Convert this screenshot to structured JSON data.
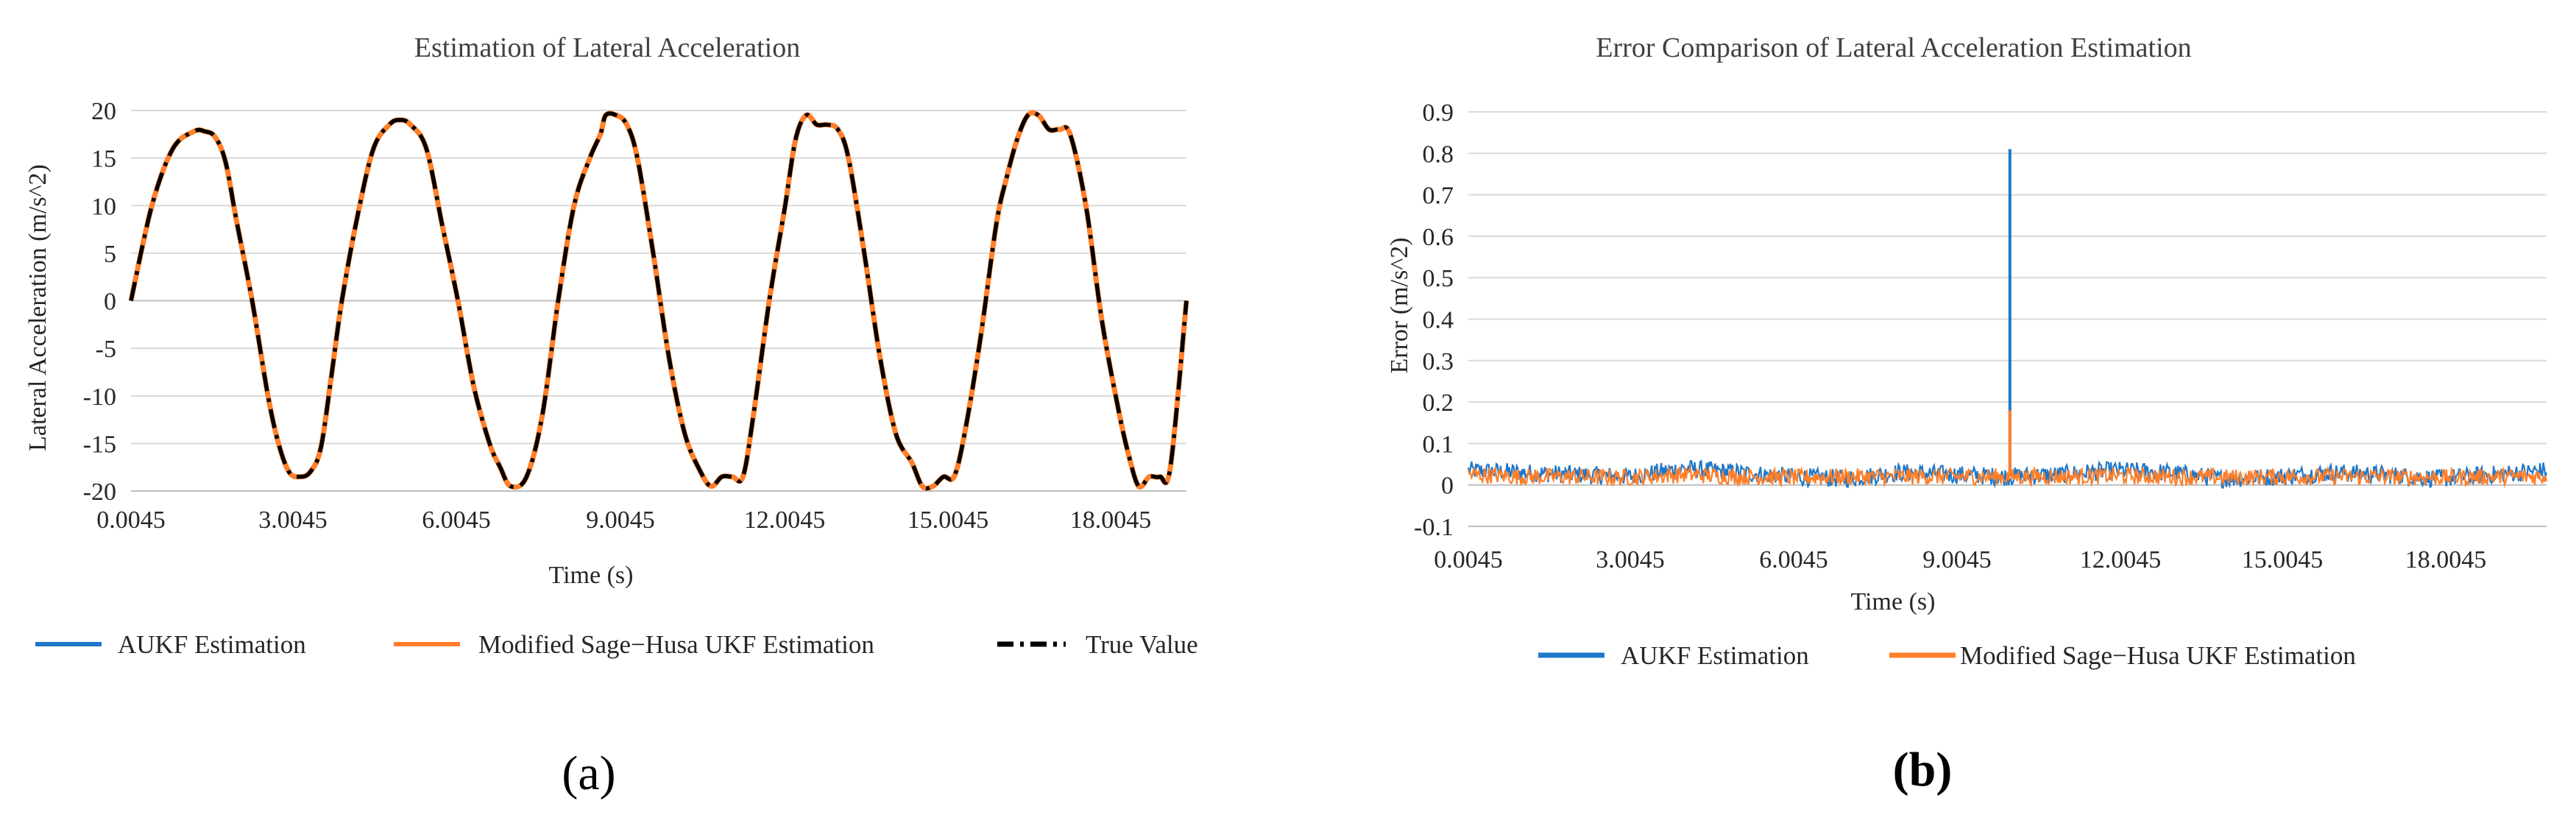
{
  "chart_data": [
    {
      "type": "line",
      "title": "Estimation of Lateral Acceleration",
      "xlabel": "Time (s)",
      "ylabel": "Lateral Acceleration (m/s^2)",
      "xlim": [
        0.0045,
        20.0045
      ],
      "ylim": [
        -20,
        20
      ],
      "yticks": [
        "20",
        "15",
        "10",
        "5",
        "0",
        "-5",
        "-10",
        "-15",
        "-20"
      ],
      "xticks": [
        "0.0045",
        "3.0045",
        "6.0045",
        "9.0045",
        "12.0045",
        "15.0045",
        "18.0045"
      ],
      "grid": true,
      "legend_position": "bottom",
      "true_value": {
        "x": [
          0.0045,
          0.4,
          0.8,
          1.2,
          1.4,
          1.6,
          1.8,
          2.0,
          2.3,
          2.6,
          2.8,
          3.0,
          3.2,
          3.4,
          3.6,
          3.8,
          4.0,
          4.3,
          4.6,
          4.9,
          5.1,
          5.3,
          5.6,
          5.9,
          6.2,
          6.5,
          6.8,
          7.0,
          7.2,
          7.5,
          7.8,
          8.1,
          8.4,
          8.7,
          8.9,
          9.0,
          9.2,
          9.4,
          9.6,
          9.9,
          10.2,
          10.5,
          10.8,
          11.0,
          11.2,
          11.4,
          11.6,
          11.8,
          12.1,
          12.4,
          12.6,
          12.8,
          13.0,
          13.2,
          13.4,
          13.6,
          13.9,
          14.2,
          14.5,
          14.8,
          15.0,
          15.2,
          15.4,
          15.6,
          15.8,
          16.1,
          16.4,
          16.6,
          16.8,
          17.0,
          17.2,
          17.4,
          17.6,
          17.8,
          18.1,
          18.4,
          18.7,
          18.9,
          19.1,
          19.3,
          19.5,
          19.7,
          20.0045
        ],
        "y": [
          0,
          10,
          16,
          17.8,
          17.8,
          17.2,
          14.5,
          8.5,
          0,
          -10,
          -15,
          -18,
          -18.5,
          -18,
          -15.5,
          -8,
          0,
          9,
          16,
          18.5,
          19,
          18.5,
          16,
          8,
          0,
          -9,
          -15,
          -17.5,
          -19.5,
          -18.5,
          -12,
          0,
          10,
          15,
          17.5,
          19.5,
          19.5,
          18.5,
          15,
          5,
          -6,
          -14,
          -18,
          -19.5,
          -18.5,
          -18.5,
          -18.5,
          -12,
          0,
          10,
          17,
          19.5,
          18.5,
          18.5,
          18,
          15,
          5,
          -6,
          -14,
          -17,
          -19.5,
          -19.5,
          -18.5,
          -18.5,
          -14,
          -4,
          8,
          13,
          17,
          19.5,
          19.5,
          18,
          18,
          17.5,
          10,
          -2,
          -11,
          -16,
          -19.5,
          -18.5,
          -18.5,
          -17.5,
          0
        ]
      },
      "series": [
        {
          "name": "AUKF Estimation",
          "color": "#1f77c8"
        },
        {
          "name": "Modified Sage−Husa UKF Estimation",
          "color": "#ff7f2a"
        },
        {
          "name": "True Value",
          "color": "#000000"
        }
      ]
    },
    {
      "type": "line",
      "title": "Error Comparison of Lateral Acceleration Estimation",
      "xlabel": "Time (s)",
      "ylabel": "Error (m/s^2)",
      "xlim": [
        0.0045,
        20.0045
      ],
      "ylim": [
        -0.1,
        0.9
      ],
      "yticks": [
        "0.9",
        "0.8",
        "0.7",
        "0.6",
        "0.5",
        "0.4",
        "0.3",
        "0.2",
        "0.1",
        "0",
        "-0.1"
      ],
      "xticks": [
        "0.0045",
        "3.0045",
        "6.0045",
        "9.0045",
        "12.0045",
        "15.0045",
        "18.0045"
      ],
      "grid": true,
      "legend_position": "bottom",
      "aukf_error_baseline": {
        "x": [
          0.0045,
          1,
          2,
          3,
          4,
          5,
          6,
          7,
          8,
          9,
          10,
          11,
          12,
          13,
          14,
          15,
          16,
          17,
          18,
          19,
          20.0045
        ],
        "y": [
          0.035,
          0.03,
          0.025,
          0.02,
          0.04,
          0.03,
          0.02,
          0.015,
          0.03,
          0.025,
          0.02,
          0.025,
          0.035,
          0.03,
          0.015,
          0.02,
          0.03,
          0.025,
          0.015,
          0.025,
          0.035
        ]
      },
      "aukf_spike": {
        "x": 10.05,
        "y": 0.81
      },
      "modified_error_baseline": {
        "x": [
          0.0045,
          1,
          2,
          3,
          4,
          5,
          6,
          7,
          8,
          9,
          10,
          11,
          12,
          13,
          14,
          15,
          16,
          17,
          18,
          19,
          20.0045
        ],
        "y": [
          0.025,
          0.02,
          0.02,
          0.018,
          0.025,
          0.02,
          0.018,
          0.02,
          0.02,
          0.02,
          0.02,
          0.02,
          0.022,
          0.02,
          0.018,
          0.02,
          0.02,
          0.02,
          0.018,
          0.02,
          0.02
        ]
      },
      "modified_spike": {
        "x": 10.05,
        "y": 0.18
      },
      "series": [
        {
          "name": "AUKF Estimation",
          "color": "#1f77c8"
        },
        {
          "name": "Modified Sage−Husa UKF Estimation",
          "color": "#ff7f2a"
        }
      ]
    }
  ],
  "panels": {
    "a": "(a)",
    "b": "(b)"
  }
}
